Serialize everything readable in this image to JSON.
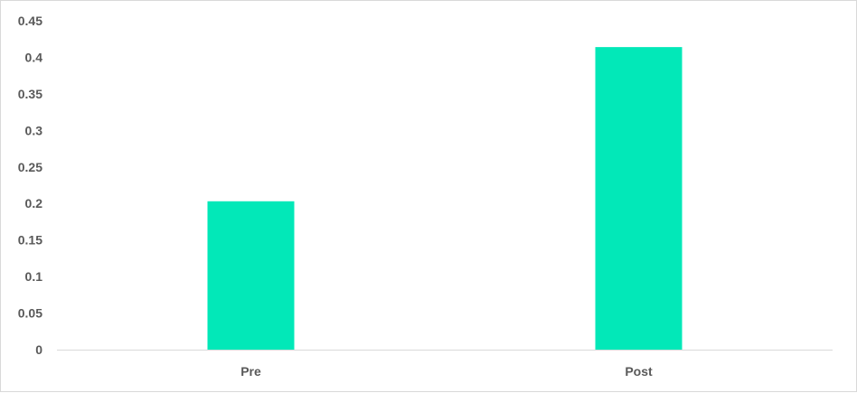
{
  "chart_data": {
    "type": "bar",
    "categories": [
      "Pre",
      "Post"
    ],
    "values": [
      0.203,
      0.414
    ],
    "title": "",
    "xlabel": "",
    "ylabel": "",
    "ylim": [
      0,
      0.45
    ],
    "yticks": [
      "0",
      "0.05",
      "0.1",
      "0.15",
      "0.2",
      "0.25",
      "0.3",
      "0.35",
      "0.4",
      "0.45"
    ],
    "grid": false,
    "legend": "none",
    "bar_color": "#02E8B8",
    "axis_color": "#d9d9d9"
  }
}
